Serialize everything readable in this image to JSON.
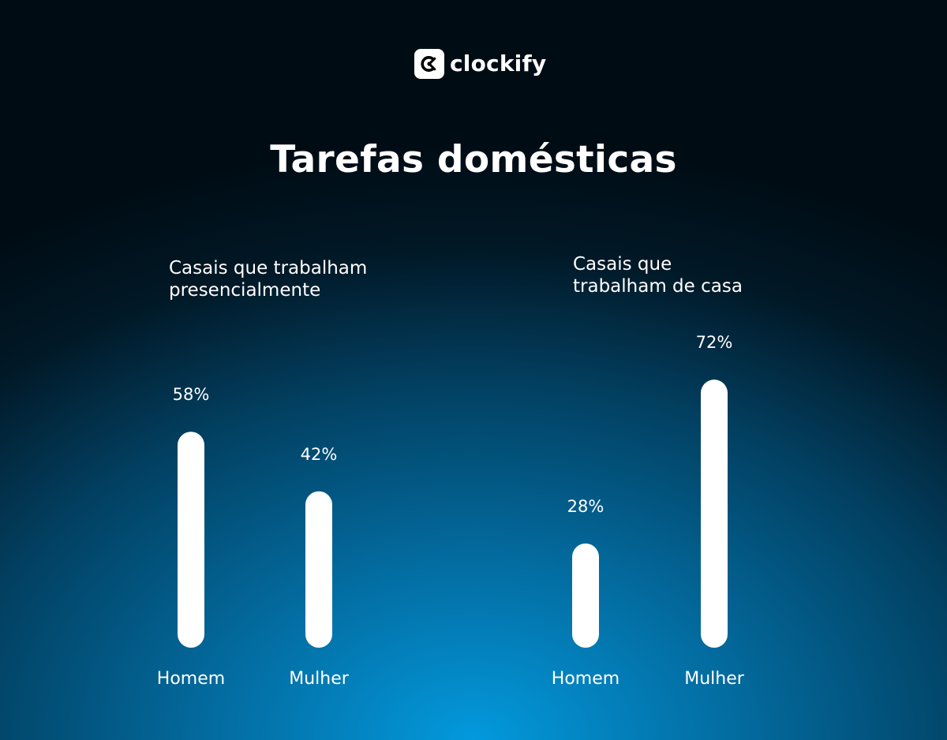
{
  "brand": {
    "name": "clockify",
    "mark_color": "#ffffff",
    "mark_inner_color": "#000000"
  },
  "title": "Tarefas domésticas",
  "chart_data": {
    "type": "bar",
    "title": "Tarefas domésticas",
    "unit": "%",
    "bar_color": "#ffffff",
    "groups": [
      {
        "title_lines": [
          "Casais que trabalham",
          "presencialmente"
        ],
        "categories": [
          "Homem",
          "Mulher"
        ],
        "values": [
          58,
          42
        ],
        "labels": [
          "58%",
          "42%"
        ]
      },
      {
        "title_lines": [
          "Casais que",
          "trabalham de casa"
        ],
        "categories": [
          "Homem",
          "Mulher"
        ],
        "values": [
          28,
          72
        ],
        "labels": [
          "28%",
          "72%"
        ]
      }
    ]
  }
}
